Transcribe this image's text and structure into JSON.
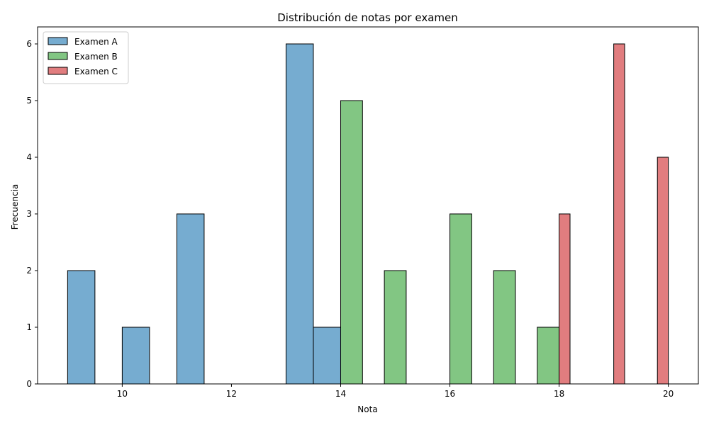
{
  "chart_data": {
    "type": "bar",
    "title": "Distribución de notas por examen",
    "xlabel": "Nota",
    "ylabel": "Frecuencia",
    "xlim": [
      8.45,
      20.55
    ],
    "ylim": [
      0,
      6.3
    ],
    "xticks": [
      10,
      12,
      14,
      16,
      18,
      20
    ],
    "yticks": [
      0,
      1,
      2,
      3,
      4,
      5,
      6
    ],
    "grid": false,
    "legend": "top-left",
    "series": [
      {
        "name": "Examen A",
        "color": "#76acd0",
        "bins": [
          {
            "x0": 9.0,
            "x1": 9.5,
            "count": 2
          },
          {
            "x0": 10.0,
            "x1": 10.5,
            "count": 1
          },
          {
            "x0": 11.0,
            "x1": 11.5,
            "count": 3
          },
          {
            "x0": 13.0,
            "x1": 13.5,
            "count": 6
          },
          {
            "x0": 13.5,
            "x1": 14.0,
            "count": 1
          }
        ]
      },
      {
        "name": "Examen B",
        "color": "#82c683",
        "bins": [
          {
            "x0": 14.0,
            "x1": 14.4,
            "count": 5
          },
          {
            "x0": 14.8,
            "x1": 15.2,
            "count": 2
          },
          {
            "x0": 16.0,
            "x1": 16.4,
            "count": 3
          },
          {
            "x0": 16.8,
            "x1": 17.2,
            "count": 2
          },
          {
            "x0": 17.6,
            "x1": 18.0,
            "count": 1
          }
        ]
      },
      {
        "name": "Examen C",
        "color": "#e17d7f",
        "bins": [
          {
            "x0": 18.0,
            "x1": 18.2,
            "count": 3
          },
          {
            "x0": 19.0,
            "x1": 19.2,
            "count": 6
          },
          {
            "x0": 19.8,
            "x1": 20.0,
            "count": 4
          }
        ]
      }
    ]
  }
}
